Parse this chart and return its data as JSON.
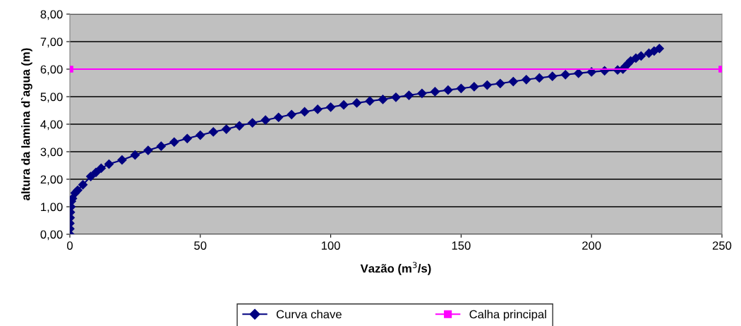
{
  "chart_data": {
    "type": "line",
    "xlabel": "Vazão (m$^{3}$/s)",
    "ylabel": "altura da lamina d`agua (m)",
    "xlim": [
      0,
      250
    ],
    "xticks": [
      0,
      50,
      100,
      150,
      200,
      250
    ],
    "ylim": [
      0,
      8
    ],
    "yticks": [
      {
        "value": 0,
        "label": "0,00"
      },
      {
        "value": 1,
        "label": "1,00"
      },
      {
        "value": 2,
        "label": "2,00"
      },
      {
        "value": 3,
        "label": "3,00"
      },
      {
        "value": 4,
        "label": "4,00"
      },
      {
        "value": 5,
        "label": "5,00"
      },
      {
        "value": 6,
        "label": "6,00"
      },
      {
        "value": 7,
        "label": "7,00"
      },
      {
        "value": 8,
        "label": "8,00"
      }
    ],
    "grid": "y",
    "legend": "bottom",
    "series": [
      {
        "name": "Curva chave",
        "color": "#000080",
        "marker": "diamond",
        "x": [
          0,
          0,
          0,
          0.1,
          0.2,
          0.4,
          0.6,
          1,
          2,
          3,
          5,
          8,
          10,
          12,
          15,
          20,
          25,
          30,
          35,
          40,
          45,
          50,
          55,
          60,
          65,
          70,
          75,
          80,
          85,
          90,
          95,
          100,
          105,
          110,
          115,
          120,
          125,
          130,
          135,
          140,
          145,
          150,
          155,
          160,
          165,
          170,
          175,
          180,
          185,
          190,
          195,
          200,
          205,
          210,
          212,
          213,
          214,
          215,
          217,
          219,
          222,
          224,
          226
        ],
        "values": [
          0,
          0.2,
          0.4,
          0.6,
          0.8,
          1.0,
          1.2,
          1.3,
          1.5,
          1.6,
          1.8,
          2.1,
          2.25,
          2.4,
          2.55,
          2.7,
          2.88,
          3.05,
          3.2,
          3.35,
          3.48,
          3.6,
          3.72,
          3.82,
          3.94,
          4.05,
          4.15,
          4.25,
          4.35,
          4.45,
          4.54,
          4.62,
          4.7,
          4.77,
          4.84,
          4.9,
          4.98,
          5.05,
          5.12,
          5.18,
          5.24,
          5.3,
          5.36,
          5.42,
          5.48,
          5.55,
          5.62,
          5.68,
          5.74,
          5.8,
          5.85,
          5.9,
          5.94,
          5.97,
          6.0,
          6.1,
          6.2,
          6.3,
          6.4,
          6.48,
          6.58,
          6.66,
          6.75
        ]
      },
      {
        "name": "Calha principal",
        "color": "#ff00ff",
        "marker": "square",
        "x": [
          0,
          250
        ],
        "values": [
          6,
          6
        ]
      }
    ]
  }
}
